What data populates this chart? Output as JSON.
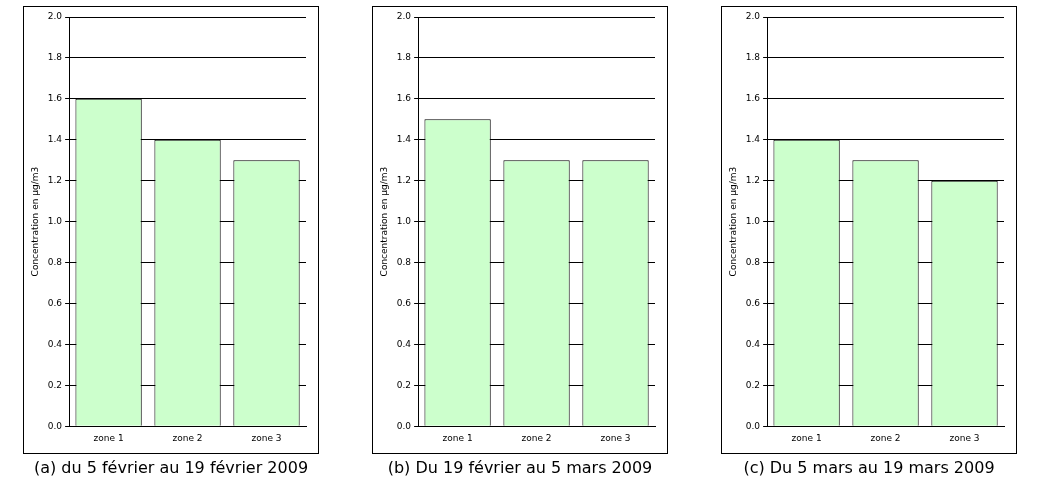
{
  "chart_data": [
    {
      "type": "bar",
      "ylabel": "Concentration en µg/m3",
      "categories": [
        "zone 1",
        "zone 2",
        "zone 3"
      ],
      "values": [
        1.6,
        1.4,
        1.3
      ],
      "color": "#ccffcc",
      "ylim": [
        0,
        2
      ],
      "yticks": [
        {
          "value": 0,
          "label": "0.0"
        },
        {
          "value": 0.2,
          "label": "0.2"
        },
        {
          "value": 0.4,
          "label": "0.4"
        },
        {
          "value": 0.6,
          "label": "0.6"
        },
        {
          "value": 0.8,
          "label": "0.8"
        },
        {
          "value": 1,
          "label": "1.0"
        },
        {
          "value": 1.2,
          "label": "1.2"
        },
        {
          "value": 1.4,
          "label": "1.4"
        },
        {
          "value": 1.6,
          "label": "1.6"
        },
        {
          "value": 1.8,
          "label": "1.8"
        },
        {
          "value": 2,
          "label": "2.0"
        }
      ],
      "grid": "y",
      "legend": false,
      "annotations": [
        "(a) du 5 février au 19 février 2009"
      ]
    },
    {
      "type": "bar",
      "ylabel": "Concentration en µg/m3",
      "categories": [
        "zone 1",
        "zone 2",
        "zone 3"
      ],
      "values": [
        1.5,
        1.3,
        1.3
      ],
      "color": "#ccffcc",
      "ylim": [
        0,
        2
      ],
      "yticks": [
        {
          "value": 0,
          "label": "0.0"
        },
        {
          "value": 0.2,
          "label": "0.2"
        },
        {
          "value": 0.4,
          "label": "0.4"
        },
        {
          "value": 0.6,
          "label": "0.6"
        },
        {
          "value": 0.8,
          "label": "0.8"
        },
        {
          "value": 1,
          "label": "1.0"
        },
        {
          "value": 1.2,
          "label": "1.2"
        },
        {
          "value": 1.4,
          "label": "1.4"
        },
        {
          "value": 1.6,
          "label": "1.6"
        },
        {
          "value": 1.8,
          "label": "1.8"
        },
        {
          "value": 2,
          "label": "2.0"
        }
      ],
      "grid": "y",
      "legend": false,
      "annotations": [
        "(b) Du 19 février au 5 mars 2009"
      ]
    },
    {
      "type": "bar",
      "ylabel": "Concentration en µg/m3",
      "categories": [
        "zone 1",
        "zone 2",
        "zone 3"
      ],
      "values": [
        1.4,
        1.3,
        1.2
      ],
      "color": "#ccffcc",
      "ylim": [
        0,
        2
      ],
      "yticks": [
        {
          "value": 0,
          "label": "0.0"
        },
        {
          "value": 0.2,
          "label": "0.2"
        },
        {
          "value": 0.4,
          "label": "0.4"
        },
        {
          "value": 0.6,
          "label": "0.6"
        },
        {
          "value": 0.8,
          "label": "0.8"
        },
        {
          "value": 1,
          "label": "1.0"
        },
        {
          "value": 1.2,
          "label": "1.2"
        },
        {
          "value": 1.4,
          "label": "1.4"
        },
        {
          "value": 1.6,
          "label": "1.6"
        },
        {
          "value": 1.8,
          "label": "1.8"
        },
        {
          "value": 2,
          "label": "2.0"
        }
      ],
      "grid": "y",
      "legend": false,
      "annotations": [
        "(c) Du 5 mars au 19 mars 2009"
      ]
    }
  ]
}
